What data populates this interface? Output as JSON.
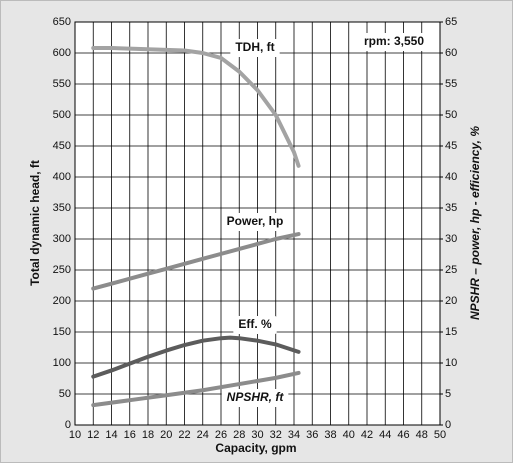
{
  "chart_data": {
    "type": "line",
    "title": "rpm: 3,550",
    "x_label": "Capacity, gpm",
    "y_label": "Total dynamic head, ft",
    "y2_label": "NPSHR – power, hp - efficiency, %",
    "xlim": [
      10,
      50
    ],
    "xticks": [
      10,
      12,
      14,
      16,
      18,
      20,
      22,
      24,
      26,
      28,
      30,
      32,
      34,
      36,
      38,
      40,
      42,
      44,
      46,
      48,
      50
    ],
    "ylim": [
      0,
      650
    ],
    "yticks": [
      0,
      50,
      100,
      150,
      200,
      250,
      300,
      350,
      400,
      450,
      500,
      550,
      600,
      650
    ],
    "y2lim": [
      0,
      65
    ],
    "y2ticks": [
      0,
      5,
      10,
      15,
      20,
      25,
      30,
      35,
      40,
      45,
      50,
      55,
      60,
      65
    ],
    "grid": true,
    "series": [
      {
        "name": "TDH, ft",
        "color": "#a3a3a3",
        "axis": "y",
        "x": [
          12,
          14,
          16,
          18,
          20,
          22,
          24,
          26,
          28,
          30,
          32,
          34,
          34.5
        ],
        "values": [
          608,
          608,
          607,
          606,
          605,
          604,
          600,
          592,
          570,
          540,
          500,
          440,
          418
        ]
      },
      {
        "name": "Power, hp",
        "color": "#8c8c8c",
        "axis": "y2",
        "x": [
          12,
          14,
          16,
          18,
          20,
          22,
          24,
          26,
          28,
          30,
          32,
          34.5
        ],
        "values": [
          22,
          22.8,
          23.6,
          24.4,
          25.2,
          26,
          26.8,
          27.6,
          28.4,
          29.2,
          30,
          30.8
        ]
      },
      {
        "name": "Eff. %",
        "color": "#5c5c5c",
        "axis": "y2",
        "x": [
          12,
          14,
          16,
          18,
          20,
          22,
          24,
          26,
          27,
          28,
          30,
          32,
          34.5
        ],
        "values": [
          7.8,
          8.8,
          9.9,
          11,
          12,
          12.9,
          13.6,
          14,
          14.1,
          14,
          13.6,
          13,
          11.8
        ]
      },
      {
        "name": "NPSHR, ft",
        "color": "#8c8c8c",
        "axis": "y2",
        "x": [
          12,
          16,
          20,
          24,
          28,
          32,
          34.5
        ],
        "values": [
          3.2,
          4,
          4.8,
          5.6,
          6.6,
          7.6,
          8.4
        ]
      }
    ]
  }
}
